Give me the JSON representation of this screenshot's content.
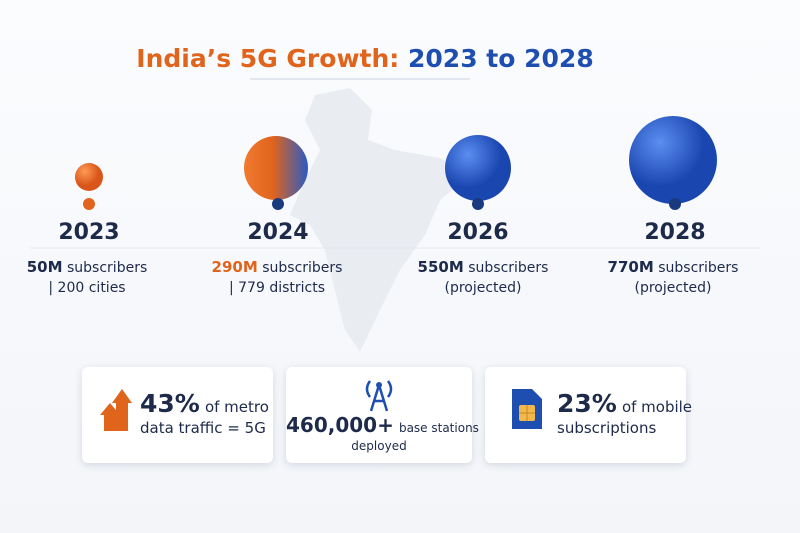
{
  "title": {
    "lead": "India’s 5G Growth:",
    "range": "2023 to 2028"
  },
  "timeline": [
    {
      "year": "2023",
      "highlight": "50M",
      "text": "subscribers",
      "detail": "| 200 cities"
    },
    {
      "year": "2024",
      "highlight": "290M",
      "text": "subscribers",
      "detail": "| 779 districts"
    },
    {
      "year": "2026",
      "highlight": "550M",
      "text": "subscribers",
      "detail": "(projected)"
    },
    {
      "year": "2028",
      "highlight": "770M",
      "text": "subscribers",
      "detail": "(projected)"
    }
  ],
  "stats": [
    {
      "highlight": "43%",
      "text": "of metro",
      "line2": "data traffic = 5G"
    },
    {
      "highlight": "460,000+",
      "text": "base stations",
      "line2": "deployed"
    },
    {
      "highlight": "23%",
      "text": "of mobile",
      "line2": "subscriptions"
    }
  ]
}
